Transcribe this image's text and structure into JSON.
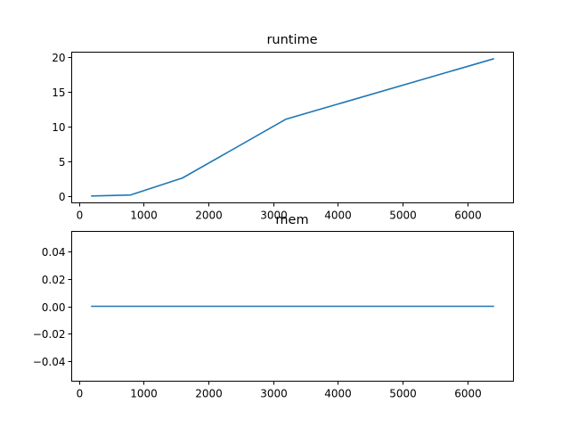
{
  "figure": {
    "background": "#ffffff"
  },
  "chart_data": [
    {
      "type": "line",
      "title": "runtime",
      "xlabel": "",
      "ylabel": "",
      "xlim": [
        -110,
        6710
      ],
      "ylim": [
        -0.99,
        20.77
      ],
      "xticks": [
        0,
        1000,
        2000,
        3000,
        4000,
        5000,
        6000
      ],
      "xtick_labels": [
        "0",
        "1000",
        "2000",
        "3000",
        "4000",
        "5000",
        "6000"
      ],
      "yticks": [
        0,
        5,
        10,
        15,
        20
      ],
      "ytick_labels": [
        "0",
        "5",
        "10",
        "15",
        "20"
      ],
      "grid": false,
      "series": [
        {
          "color": "#1f77b4",
          "x": [
            200,
            800,
            1600,
            3200,
            6400
          ],
          "y": [
            0.0,
            0.15,
            2.6,
            11.1,
            19.8
          ]
        }
      ]
    },
    {
      "type": "line",
      "title": "mem",
      "xlabel": "",
      "ylabel": "",
      "xlim": [
        -110,
        6710
      ],
      "ylim": [
        -0.055,
        0.055
      ],
      "xticks": [
        0,
        1000,
        2000,
        3000,
        4000,
        5000,
        6000
      ],
      "xtick_labels": [
        "0",
        "1000",
        "2000",
        "3000",
        "4000",
        "5000",
        "6000"
      ],
      "yticks": [
        -0.04,
        -0.02,
        0.0,
        0.02,
        0.04
      ],
      "ytick_labels": [
        "−0.04",
        "−0.02",
        "0.00",
        "0.02",
        "0.04"
      ],
      "grid": false,
      "series": [
        {
          "color": "#1f77b4",
          "x": [
            200,
            800,
            1600,
            3200,
            6400
          ],
          "y": [
            0,
            0,
            0,
            0,
            0
          ]
        }
      ]
    }
  ]
}
